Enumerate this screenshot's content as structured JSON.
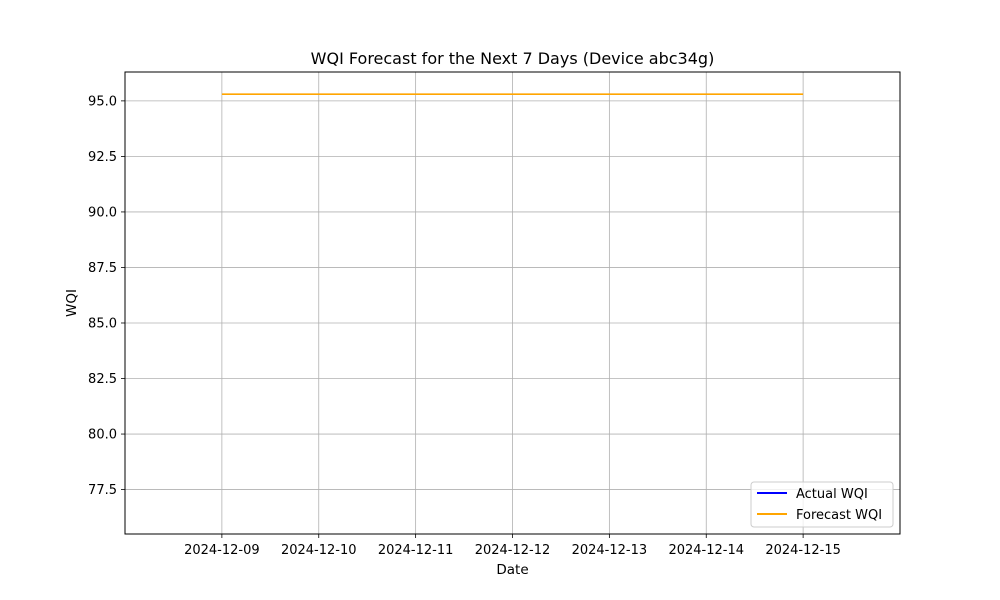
{
  "chart_data": {
    "type": "line",
    "title": "WQI Forecast for the Next 7 Days (Device abc34g)",
    "xlabel": "Date",
    "ylabel": "WQI",
    "x": [
      "2024-12-09",
      "2024-12-10",
      "2024-12-11",
      "2024-12-12",
      "2024-12-13",
      "2024-12-14",
      "2024-12-15"
    ],
    "xlim": [
      "2024-12-08",
      "2024-12-16"
    ],
    "ylim": [
      75.5,
      96.3
    ],
    "y_ticks": [
      "77.5",
      "80.0",
      "82.5",
      "85.0",
      "87.5",
      "90.0",
      "92.5",
      "95.0"
    ],
    "grid": true,
    "legend_position": "bottom-right",
    "series": [
      {
        "name": "Actual WQI",
        "color": "#0000ff",
        "x": [],
        "values": []
      },
      {
        "name": "Forecast WQI",
        "color": "#ffa500",
        "x": [
          "2024-12-09",
          "2024-12-10",
          "2024-12-11",
          "2024-12-12",
          "2024-12-13",
          "2024-12-14",
          "2024-12-15"
        ],
        "values": [
          95.3,
          95.3,
          95.3,
          95.3,
          95.3,
          95.3,
          95.3
        ]
      }
    ]
  }
}
